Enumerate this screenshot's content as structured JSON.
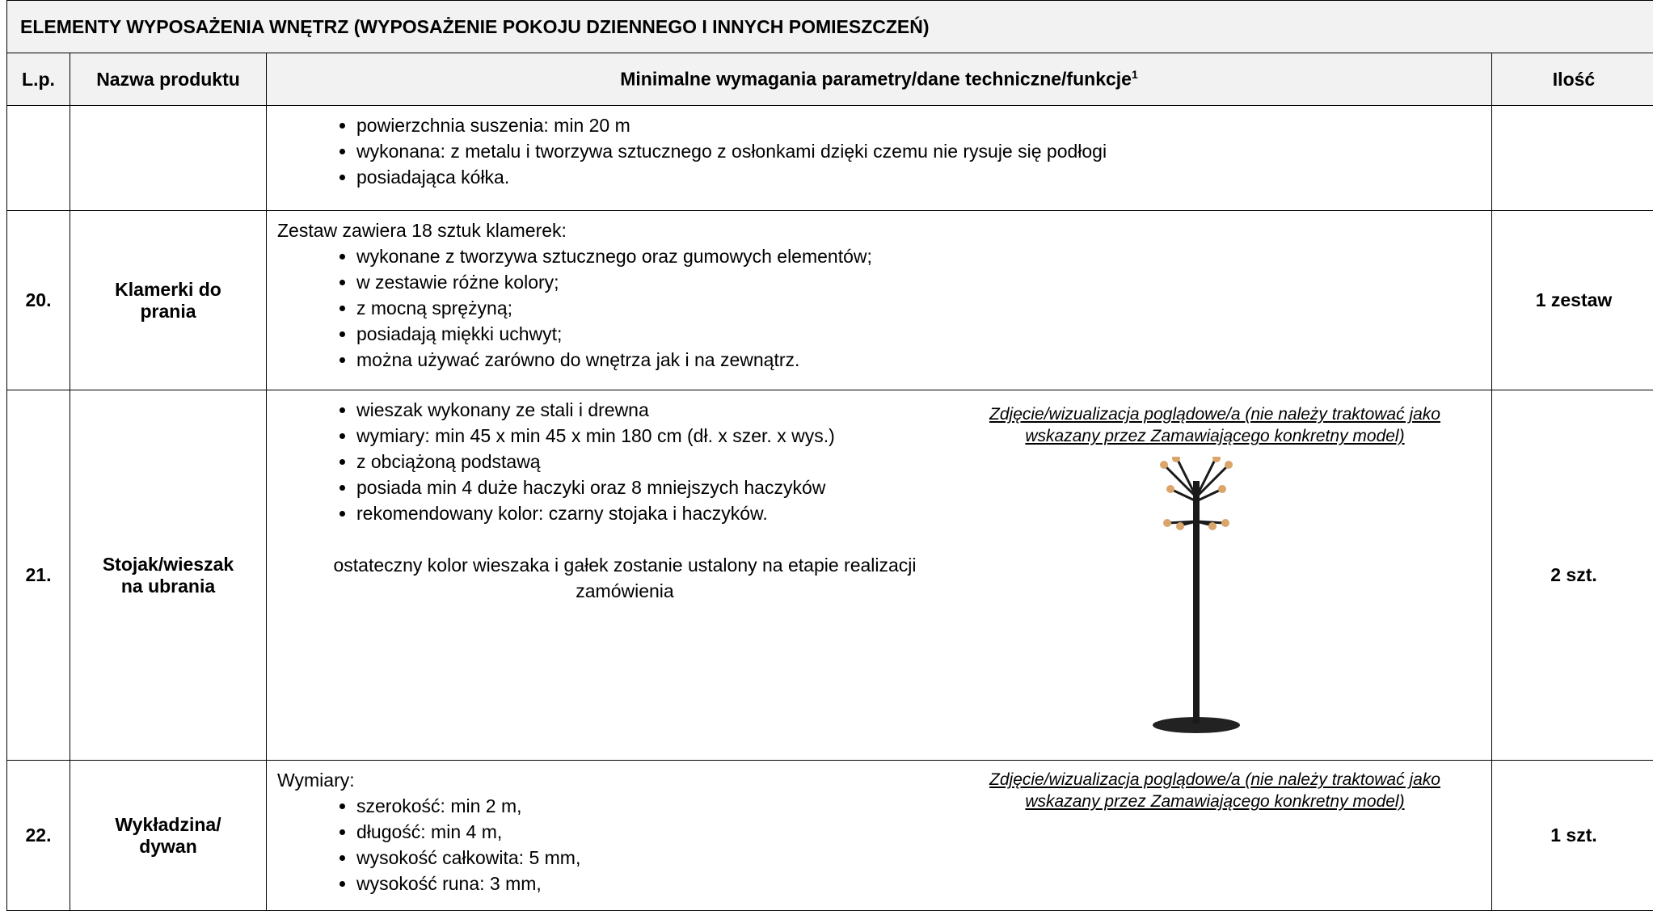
{
  "title": "ELEMENTY WYPOSAŻENIA WNĘTRZ (WYPOSAŻENIE POKOJU DZIENNEGO I INNYCH POMIESZCZEŃ)",
  "table": {
    "header": [
      "L.p.",
      "Nazwa produktu",
      "Minimalne wymagania parametry/dane techniczne/funkcje",
      "Ilość"
    ],
    "header_footnote": "1",
    "rows": [
      {
        "bullets": [
          "powierzchnia suszenia: min 20 m",
          "wykonana:  z  metalu i tworzywa sztucznego z osłonkami dzięki czemu nie rysuje się podłogi",
          "posiadająca kółka."
        ]
      },
      {
        "lp": "20.",
        "name": "Klamerki do prania",
        "intro": "Zestaw zawiera 18 sztuk klamerek:",
        "bullets": [
          "wykonane z tworzywa sztucznego oraz gumowych elementów;",
          "w zestawie różne kolory;",
          "z mocną sprężyną;",
          "posiadają miękki uchwyt;",
          "można używać zarówno do wnętrza jak i na zewnątrz."
        ],
        "qty": "1 zestaw"
      },
      {
        "lp": "21.",
        "name": "Stojak/wieszak na ubrania",
        "bullets": [
          "wieszak wykonany ze stali i drewna",
          "wymiary: min 45 x min 45 x min 180 cm (dł. x szer. x wys.)",
          "z obciążoną podstawą",
          "posiada min 4 duże haczyki oraz 8 mniejszych haczyków",
          "rekomendowany kolor: czarny stojaka i haczyków."
        ],
        "note": "ostateczny kolor wieszaka i gałek zostanie ustalony na etapie realizacji zamówienia",
        "image_caption": "Zdjęcie/wizualizacja poglądowe/a (nie należy traktować jako wskazany przez Zamawiającego konkretny model)",
        "qty": "2 szt."
      },
      {
        "lp": "22.",
        "name": "Wykładzina/ dywan",
        "intro": "Wymiary:",
        "bullets": [
          "szerokość: min 2 m,",
          "długość: min 4 m,",
          "wysokość całkowita: 5 mm,",
          "wysokość runa: 3 mm,"
        ],
        "image_caption": "Zdjęcie/wizualizacja poglądowe/a (nie należy traktować jako wskazany przez Zamawiającego konkretny model)",
        "qty": "1 szt."
      }
    ]
  }
}
